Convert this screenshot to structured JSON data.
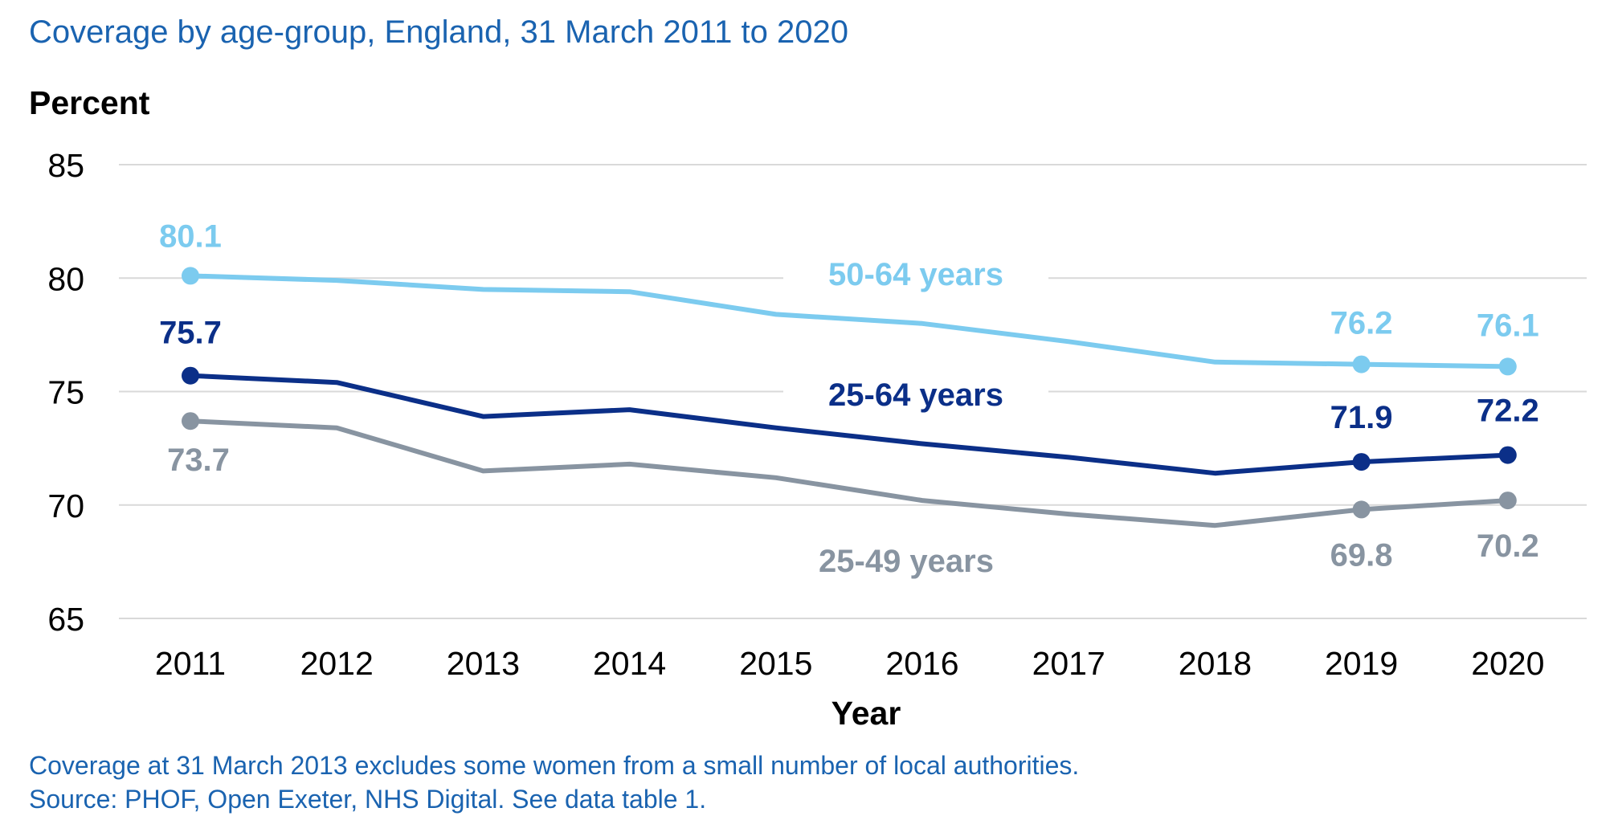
{
  "title": "Coverage by age-group, England, 31 March 2011 to 2020",
  "footnotes": [
    "Coverage at 31 March 2013 excludes some women from a small number of local authorities.",
    "Source: PHOF, Open Exeter, NHS Digital. See data table 1."
  ],
  "chart_data": {
    "type": "line",
    "ylabel": "Percent",
    "xlabel": "Year",
    "ylim": [
      65,
      85
    ],
    "yticks": [
      65,
      70,
      75,
      80,
      85
    ],
    "grid": true,
    "legend": "inline",
    "x": [
      "2011",
      "2012",
      "2013",
      "2014",
      "2015",
      "2016",
      "2017",
      "2018",
      "2019",
      "2020"
    ],
    "series": [
      {
        "name": "50-64 years",
        "color": "#7ccbef",
        "values": [
          80.1,
          79.9,
          79.5,
          79.4,
          78.4,
          78.0,
          77.2,
          76.3,
          76.2,
          76.1
        ],
        "labeled": [
          {
            "year": "2011",
            "text": "80.1"
          },
          {
            "year": "2019",
            "text": "76.2"
          },
          {
            "year": "2020",
            "text": "76.1"
          }
        ]
      },
      {
        "name": "25-64 years",
        "color": "#0b2f88",
        "values": [
          75.7,
          75.4,
          73.9,
          74.2,
          73.4,
          72.7,
          72.1,
          71.4,
          71.9,
          72.2
        ],
        "labeled": [
          {
            "year": "2011",
            "text": "75.7"
          },
          {
            "year": "2019",
            "text": "71.9"
          },
          {
            "year": "2020",
            "text": "72.2"
          }
        ]
      },
      {
        "name": "25-49 years",
        "color": "#8894a1",
        "values": [
          73.7,
          73.4,
          71.5,
          71.8,
          71.2,
          70.2,
          69.6,
          69.1,
          69.8,
          70.2
        ],
        "labeled": [
          {
            "year": "2011",
            "text": "73.7"
          },
          {
            "year": "2019",
            "text": "69.8"
          },
          {
            "year": "2020",
            "text": "70.2"
          }
        ]
      }
    ]
  }
}
